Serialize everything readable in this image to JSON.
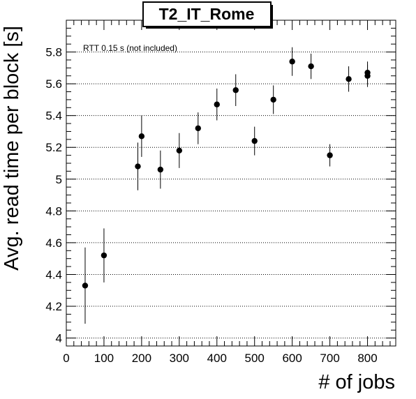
{
  "chart_data": {
    "type": "scatter",
    "title": "T2_IT_Rome",
    "xlabel": "# of jobs",
    "ylabel": "Avg. read time per block [s]",
    "annotation": "RTT 0.15 s (not included)",
    "xlim": [
      0,
      875
    ],
    "ylim": [
      3.95,
      6.0
    ],
    "x_ticks": [
      0,
      100,
      200,
      300,
      400,
      500,
      600,
      700,
      800
    ],
    "y_ticks": [
      4,
      4.2,
      4.4,
      4.6,
      4.8,
      5,
      5.2,
      5.4,
      5.6,
      5.8
    ],
    "y_tick_labels": [
      "4",
      "4.2",
      "4.4",
      "4.6",
      "4.8",
      "5",
      "5.2",
      "5.4",
      "5.6",
      "5.8"
    ],
    "grid": "y-dotted",
    "marker_color": "#000000",
    "points": [
      {
        "x": 50,
        "y": 4.33,
        "err": 0.24
      },
      {
        "x": 100,
        "y": 4.52,
        "err": 0.17
      },
      {
        "x": 190,
        "y": 5.08,
        "err": 0.15
      },
      {
        "x": 200,
        "y": 5.27,
        "err": 0.13
      },
      {
        "x": 250,
        "y": 5.06,
        "err": 0.12
      },
      {
        "x": 300,
        "y": 5.18,
        "err": 0.11
      },
      {
        "x": 350,
        "y": 5.32,
        "err": 0.1
      },
      {
        "x": 400,
        "y": 5.47,
        "err": 0.1
      },
      {
        "x": 450,
        "y": 5.56,
        "err": 0.1
      },
      {
        "x": 500,
        "y": 5.24,
        "err": 0.09
      },
      {
        "x": 550,
        "y": 5.5,
        "err": 0.09
      },
      {
        "x": 600,
        "y": 5.74,
        "err": 0.09
      },
      {
        "x": 650,
        "y": 5.71,
        "err": 0.08
      },
      {
        "x": 700,
        "y": 5.15,
        "err": 0.07
      },
      {
        "x": 750,
        "y": 5.63,
        "err": 0.08
      },
      {
        "x": 800,
        "y": 5.65,
        "err": 0.07
      },
      {
        "x": 800,
        "y": 5.67,
        "err": 0.07
      }
    ]
  }
}
